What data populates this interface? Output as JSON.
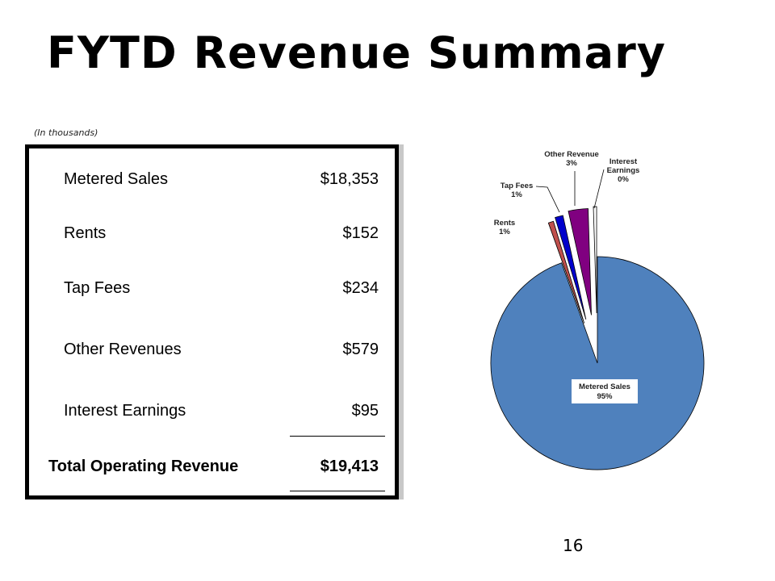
{
  "title": "FYTD Revenue Summary",
  "units_note": "(In thousands)",
  "page_number": "16",
  "table": {
    "rows": [
      {
        "label": "Metered Sales",
        "value": "$18,353"
      },
      {
        "label": "Rents",
        "value": "$152"
      },
      {
        "label": "Tap Fees",
        "value": "$234"
      },
      {
        "label": "Other Revenues",
        "value": "$579"
      },
      {
        "label": "Interest Earnings",
        "value": "$95"
      }
    ],
    "total": {
      "label": "Total Operating Revenue",
      "value": "$19,413"
    }
  },
  "chart_data": {
    "type": "pie",
    "slices": [
      {
        "name": "Metered Sales",
        "percent_label": "95%",
        "value": 18353,
        "color": "#4f81bd"
      },
      {
        "name": "Rents",
        "percent_label": "1%",
        "value": 152,
        "color": "#c0504d"
      },
      {
        "name": "Tap Fees",
        "percent_label": "1%",
        "value": 234,
        "color": "#0000cc"
      },
      {
        "name": "Other Revenue",
        "percent_label": "3%",
        "value": 579,
        "color": "#800080"
      },
      {
        "name": "Interest Earnings",
        "percent_label": "0%",
        "value": 95,
        "color": "#ffffff"
      }
    ],
    "exploded": true,
    "data_labels": "name-and-percent",
    "legend": "none"
  }
}
